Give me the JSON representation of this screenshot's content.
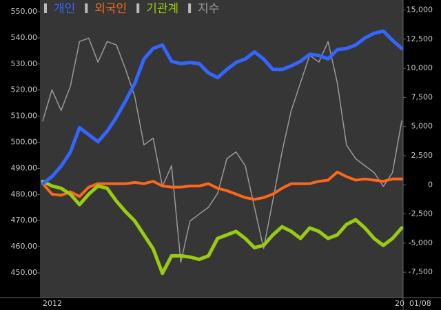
{
  "chart_data": {
    "type": "line",
    "categories": [
      "2012",
      null,
      null,
      null,
      null,
      null,
      null,
      null,
      null,
      null,
      null,
      null,
      null,
      null,
      null,
      null,
      null,
      null,
      null,
      null,
      null,
      null,
      null,
      null,
      null,
      null,
      null,
      null,
      null,
      null,
      null,
      null,
      null,
      null,
      null,
      null,
      null,
      null,
      null,
      "20"
    ],
    "cursor_label": "01/08",
    "series": [
      {
        "name": "개인",
        "color": "#3366ff",
        "axis": "y2",
        "width": 5,
        "values": [
          100,
          700,
          1600,
          2800,
          4900,
          4300,
          3700,
          4600,
          5800,
          7200,
          8700,
          10800,
          11700,
          12000,
          10600,
          10400,
          10500,
          10400,
          9600,
          9200,
          9900,
          10500,
          10800,
          11400,
          10800,
          9900,
          9900,
          10200,
          10600,
          11200,
          11100,
          10800,
          11600,
          11700,
          12000,
          12600,
          13000,
          13200,
          12400,
          11700
        ]
      },
      {
        "name": "외국인",
        "color": "#ff6619",
        "axis": "y2",
        "width": 4,
        "values": [
          100,
          -800,
          -900,
          -600,
          -1000,
          -200,
          100,
          100,
          100,
          100,
          200,
          100,
          300,
          -100,
          -200,
          -200,
          -100,
          -100,
          100,
          -300,
          -500,
          -800,
          -1100,
          -1250,
          -1100,
          -800,
          -300,
          100,
          100,
          100,
          300,
          400,
          1100,
          700,
          400,
          500,
          400,
          300,
          500,
          500
        ]
      },
      {
        "name": "기관계",
        "color": "#99cc11",
        "axis": "y2",
        "width": 5,
        "values": [
          300,
          -100,
          -300,
          -800,
          -1700,
          -800,
          -100,
          -300,
          -1400,
          -2300,
          -3100,
          -4300,
          -5500,
          -7600,
          -6100,
          -6100,
          -6200,
          -6400,
          -6100,
          -4600,
          -4300,
          -4000,
          -4600,
          -5400,
          -5200,
          -4300,
          -3600,
          -4000,
          -4600,
          -3700,
          -4000,
          -4600,
          -4300,
          -3400,
          -3000,
          -3700,
          -4600,
          -5200,
          -4600,
          -3700
        ]
      },
      {
        "name": "지수",
        "color": "#9a9a9a",
        "width": 1.5,
        "values": [
          508.2,
          520.1,
          512.2,
          521.4,
          538.6,
          539.9,
          530.7,
          538.6,
          537.3,
          528.0,
          517.5,
          499.0,
          501.6,
          483.1,
          491.0,
          454.0,
          469.8,
          472.5,
          475.1,
          480.4,
          493.7,
          496.3,
          491.0,
          475.1,
          459.3,
          477.8,
          496.3,
          512.2,
          522.8,
          533.3,
          530.7,
          538.6,
          522.8,
          499.0,
          493.7,
          491.0,
          488.4,
          483.1,
          488.4,
          508.2
        ]
      }
    ],
    "ylim": [
      440.5,
      554.5
    ],
    "yticks": [
      {
        "value": 450,
        "label": "450.00"
      },
      {
        "value": 460,
        "label": "460.00"
      },
      {
        "value": 470,
        "label": "470.00"
      },
      {
        "value": 480,
        "label": "480.00"
      },
      {
        "value": 490,
        "label": "490.00"
      },
      {
        "value": 500,
        "label": "500.00"
      },
      {
        "value": 510,
        "label": "510.00"
      },
      {
        "value": 520,
        "label": "520.00"
      },
      {
        "value": 530,
        "label": "530.00"
      },
      {
        "value": 540,
        "label": "540.00"
      },
      {
        "value": 550,
        "label": "550.00"
      }
    ],
    "y2lim": [
      -9680,
      15860
    ],
    "y2ticks": [
      {
        "value": -7500,
        "label": "-7,500"
      },
      {
        "value": -5000,
        "label": "-5,000"
      },
      {
        "value": -2500,
        "label": "-2,500"
      },
      0,
      {
        "value": 2500,
        "label": "2,500"
      },
      {
        "value": 5000,
        "label": "5,000"
      },
      {
        "value": 7500,
        "label": "7,500"
      },
      {
        "value": 10000,
        "label": "10,000"
      },
      {
        "value": 12500,
        "label": "12,500"
      },
      {
        "value": 15000,
        "label": "15,000"
      }
    ]
  }
}
